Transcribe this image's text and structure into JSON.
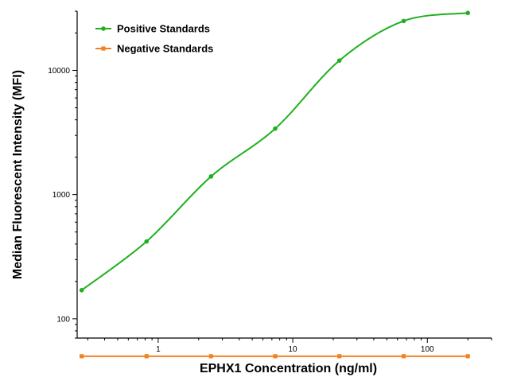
{
  "chart_data": {
    "type": "scatter",
    "title": "",
    "xlabel": "EPHX1 Concentration (ng/ml)",
    "ylabel": "Median Fluorescent Intensity (MFI)",
    "xscale": "log",
    "yscale": "log",
    "xlim": [
      0.25,
      300
    ],
    "ylim": [
      70,
      30000
    ],
    "x_ticks": [
      1,
      10,
      100
    ],
    "x_tick_labels": [
      "1",
      "10",
      "100"
    ],
    "y_ticks": [
      100,
      1000,
      10000
    ],
    "y_tick_labels": [
      "100",
      "1000",
      "10000"
    ],
    "grid": false,
    "legend_position": "top-left",
    "series": [
      {
        "name": "Positive Standards",
        "color": "#1fb01f",
        "marker": "circle",
        "fit_curve": true,
        "x": [
          0.27,
          0.82,
          2.47,
          7.41,
          22.2,
          66.7,
          200
        ],
        "y": [
          170,
          420,
          1400,
          3400,
          12000,
          25000,
          29000
        ]
      },
      {
        "name": "Negative Standards",
        "color": "#f58220",
        "marker": "square",
        "fit_curve": false,
        "x": [
          0.27,
          0.82,
          2.47,
          7.41,
          22.2,
          66.7,
          200
        ],
        "y": [
          50,
          50,
          50,
          50,
          50,
          50,
          50
        ]
      }
    ]
  }
}
